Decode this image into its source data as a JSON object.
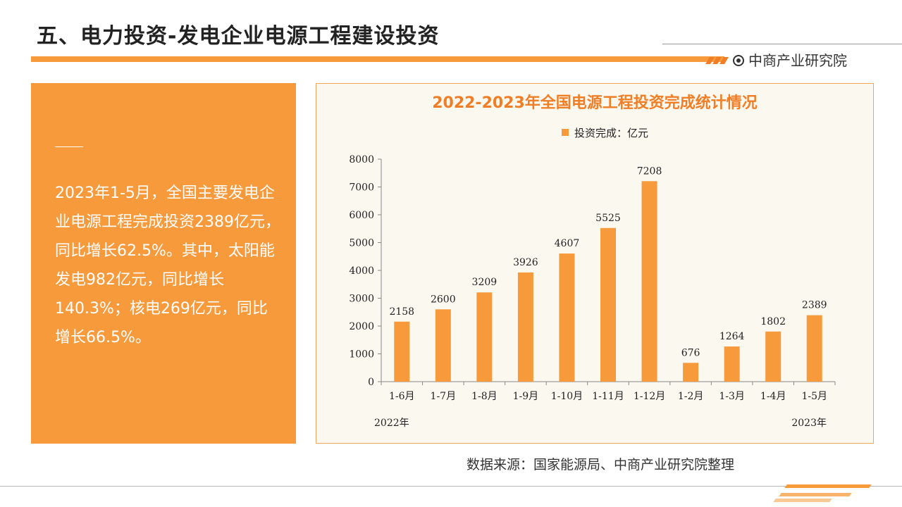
{
  "page": {
    "title": "五、电力投资-发电企业电源工程建设投资",
    "brand": "中商产业研究院",
    "summary": "2023年1-5月，全国主要发电企业电源工程完成投资2389亿元，同比增长62.5%。其中，太阳能发电982亿元，同比增长140.3%；核电269亿元，同比增长66.5%。",
    "source": "数据来源：国家能源局、中商产业研究院整理"
  },
  "colors": {
    "accent": "#f79a3c",
    "bar": "#f79a3c",
    "chart_title": "#f07e26",
    "chart_bg": "#fbf8f0"
  },
  "chart_data": {
    "type": "bar",
    "title": "2022-2023年全国电源工程投资完成统计情况",
    "legend_position": "top",
    "categories": [
      "1-6月",
      "1-7月",
      "1-8月",
      "1-9月",
      "1-10月",
      "1-11月",
      "1-12月",
      "1-2月",
      "1-3月",
      "1-4月",
      "1-5月"
    ],
    "series": [
      {
        "name": "投资完成：亿元",
        "values": [
          2158,
          2600,
          3209,
          3926,
          4607,
          5525,
          7208,
          676,
          1264,
          1802,
          2389
        ]
      }
    ],
    "year_labels": [
      "2022年",
      "2023年"
    ],
    "ylim": [
      0,
      8000
    ],
    "yticks": [
      0,
      1000,
      2000,
      3000,
      4000,
      5000,
      6000,
      7000,
      8000
    ],
    "grid": false
  }
}
